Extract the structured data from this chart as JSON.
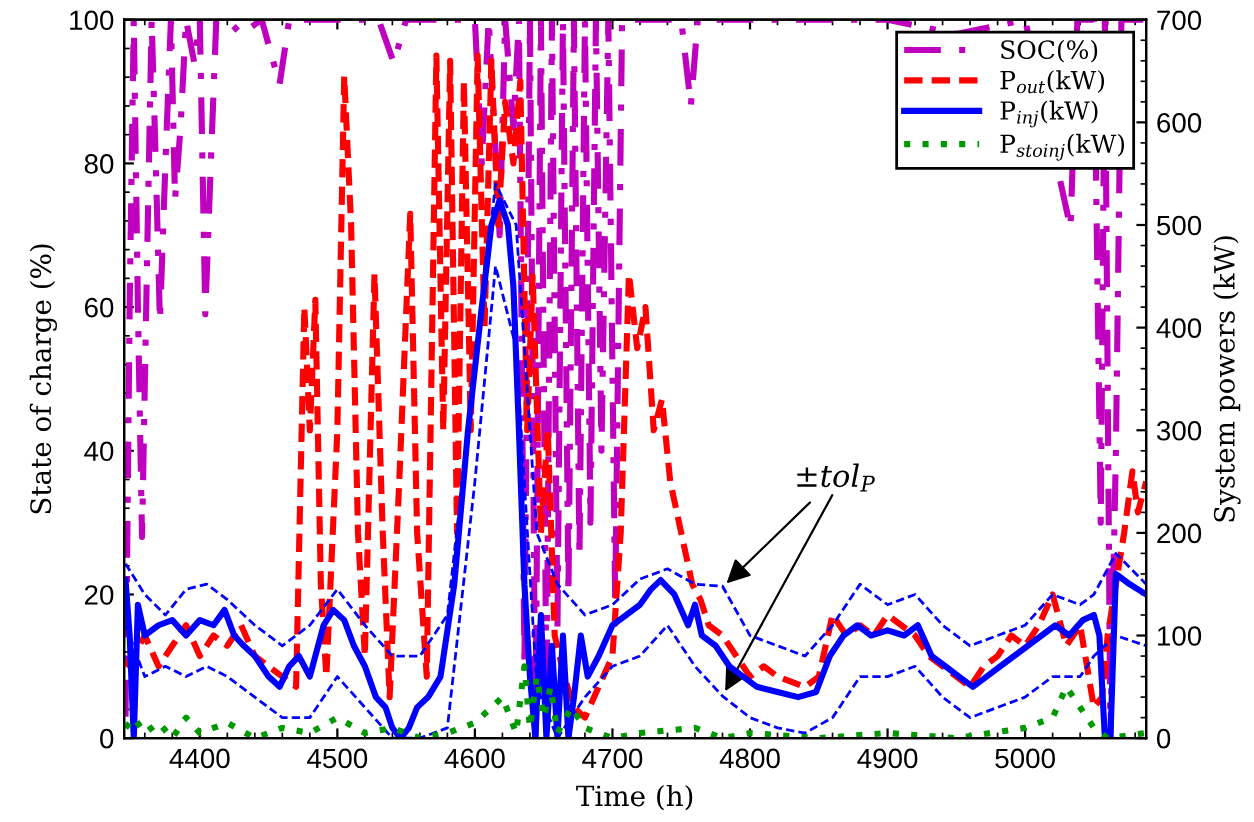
{
  "chart_data": {
    "type": "line",
    "xlabel": "Time (h)",
    "ylabel": "State of charge (%)",
    "y2label": "System powers (kW)",
    "xlim": [
      4345,
      5088
    ],
    "xticks": [
      4400,
      4500,
      4600,
      4700,
      4800,
      4900,
      5000
    ],
    "ylim": [
      0,
      100
    ],
    "yticks": [
      0,
      20,
      40,
      60,
      80,
      100
    ],
    "y2lim": [
      0,
      700
    ],
    "y2ticks": [
      0,
      100,
      200,
      300,
      400,
      500,
      600,
      700
    ],
    "grid": false,
    "legend": "top right",
    "marker": "none",
    "annotations": [
      {
        "text": "±tol$_{P}$",
        "x": 4780,
        "y": 21
      }
    ],
    "series": [
      {
        "name": "SOC(%)",
        "color": "#bf00bf",
        "line_style": "dashdot",
        "axis": "y",
        "x": [
          4346,
          4349,
          4352,
          4355,
          4358,
          4362,
          4365,
          4368,
          4371,
          4375,
          4379,
          4382,
          4386,
          4390,
          4396,
          4400,
          4404,
          4408,
          4412,
          4420,
          4430,
          4445,
          4458,
          4465,
          4530,
          4541,
          4550,
          4600,
          4605,
          4610,
          4618,
          4622,
          4628,
          4632,
          4636,
          4640,
          4644,
          4648,
          4652,
          4656,
          4660,
          4664,
          4668,
          4672,
          4676,
          4680,
          4684,
          4688,
          4692,
          4697,
          4702,
          4707,
          4750,
          4757,
          4762,
          4900,
          4950,
          5000,
          5033,
          5038,
          5050,
          5055,
          5058,
          5062,
          5066,
          5070,
          5088
        ],
        "values": [
          3,
          60,
          100,
          60,
          28,
          70,
          100,
          80,
          58,
          80,
          100,
          75,
          85,
          100,
          94,
          100,
          59,
          80,
          100,
          100,
          98,
          100,
          91,
          100,
          100,
          94,
          100,
          100,
          80,
          100,
          70,
          100,
          85,
          100,
          10,
          100,
          0,
          100,
          5,
          100,
          15,
          100,
          20,
          100,
          25,
          100,
          30,
          100,
          40,
          100,
          19,
          100,
          100,
          88,
          100,
          100,
          98,
          100,
          71,
          100,
          100,
          30,
          100,
          0,
          40,
          100,
          100
        ]
      },
      {
        "name": "P$_{out}$(kW)",
        "color": "#ff0000",
        "line_style": "dashed",
        "axis": "y2",
        "x": [
          4346,
          4352,
          4360,
          4370,
          4380,
          4390,
          4400,
          4410,
          4420,
          4430,
          4440,
          4450,
          4460,
          4470,
          4476,
          4480,
          4484,
          4488,
          4492,
          4500,
          4505,
          4510,
          4515,
          4520,
          4527,
          4533,
          4538,
          4545,
          4553,
          4558,
          4565,
          4572,
          4577,
          4582,
          4587,
          4592,
          4597,
          4602,
          4607,
          4612,
          4617,
          4622,
          4628,
          4633,
          4638,
          4642,
          4648,
          4653,
          4658,
          4665,
          4672,
          4680,
          4690,
          4700,
          4706,
          4712,
          4718,
          4724,
          4730,
          4736,
          4742,
          4750,
          4758,
          4764,
          4770,
          4780,
          4790,
          4800,
          4810,
          4820,
          4840,
          4850,
          4860,
          4870,
          4880,
          4890,
          4900,
          4910,
          4920,
          4930,
          4940,
          4950,
          4960,
          4970,
          4980,
          4990,
          5000,
          5010,
          5020,
          5030,
          5040,
          5050,
          5056,
          5060,
          5066,
          5072,
          5078,
          5082,
          5088
        ],
        "values": [
          70,
          80,
          100,
          70,
          90,
          110,
          80,
          100,
          90,
          110,
          80,
          70,
          60,
          50,
          420,
          300,
          427,
          150,
          60,
          300,
          645,
          500,
          200,
          80,
          452,
          200,
          40,
          250,
          511,
          200,
          60,
          665,
          300,
          660,
          200,
          640,
          300,
          665,
          400,
          660,
          500,
          620,
          560,
          640,
          300,
          450,
          200,
          300,
          100,
          60,
          30,
          20,
          50,
          80,
          200,
          452,
          380,
          420,
          300,
          330,
          250,
          200,
          150,
          135,
          110,
          100,
          80,
          60,
          70,
          60,
          50,
          60,
          120,
          100,
          110,
          100,
          120,
          110,
          100,
          80,
          70,
          60,
          50,
          70,
          80,
          100,
          90,
          110,
          140,
          90,
          110,
          30,
          40,
          100,
          150,
          200,
          260,
          220,
          250
        ]
      },
      {
        "name": "P$_{inj}$(kW)",
        "color": "#0000ff",
        "line_style": "solid",
        "axis": "y2",
        "x": [
          4346,
          4349,
          4352,
          4355,
          4360,
          4370,
          4380,
          4390,
          4400,
          4410,
          4418,
          4425,
          4432,
          4440,
          4450,
          4458,
          4465,
          4472,
          4480,
          4490,
          4497,
          4505,
          4512,
          4520,
          4528,
          4535,
          4540,
          4546,
          4552,
          4558,
          4566,
          4575,
          4585,
          4595,
          4605,
          4612,
          4618,
          4624,
          4628,
          4632,
          4636,
          4640,
          4644,
          4648,
          4652,
          4656,
          4660,
          4664,
          4668,
          4672,
          4677,
          4682,
          4690,
          4700,
          4710,
          4720,
          4728,
          4735,
          4745,
          4755,
          4760,
          4765,
          4775,
          4785,
          4795,
          4805,
          4820,
          4835,
          4848,
          4858,
          4868,
          4878,
          4888,
          4900,
          4912,
          4922,
          4932,
          4942,
          4952,
          4962,
          4972,
          4982,
          4992,
          5002,
          5012,
          5022,
          5032,
          5042,
          5050,
          5054,
          5058,
          5062,
          5066,
          5076,
          5088
        ],
        "values": [
          154,
          100,
          0,
          130,
          100,
          110,
          115,
          100,
          115,
          110,
          125,
          100,
          90,
          80,
          60,
          50,
          70,
          80,
          60,
          110,
          125,
          115,
          90,
          70,
          40,
          30,
          10,
          0,
          10,
          30,
          40,
          60,
          150,
          300,
          420,
          500,
          524,
          500,
          440,
          300,
          150,
          60,
          0,
          120,
          0,
          90,
          0,
          100,
          0,
          40,
          100,
          60,
          80,
          110,
          120,
          130,
          145,
          154,
          140,
          110,
          130,
          100,
          90,
          70,
          60,
          50,
          45,
          40,
          45,
          80,
          100,
          110,
          100,
          105,
          100,
          110,
          80,
          70,
          60,
          50,
          60,
          70,
          80,
          90,
          100,
          110,
          100,
          115,
          120,
          100,
          0,
          0,
          160,
          150,
          140
        ]
      },
      {
        "color": "#0000ff",
        "line_style": "dashed",
        "axis": "y2",
        "x": [
          4346,
          4360,
          4375,
          4390,
          4405,
          4420,
          4440,
          4460,
          4480,
          4500,
          4520,
          4540,
          4560,
          4580,
          4600,
          4615,
          4630,
          4645,
          4660,
          4680,
          4700,
          4720,
          4740,
          4760,
          4780,
          4800,
          4820,
          4840,
          4860,
          4880,
          4900,
          4920,
          4940,
          4960,
          4980,
          5000,
          5020,
          5040,
          5050,
          5066,
          5088
        ],
        "values": [
          170,
          140,
          120,
          145,
          150,
          135,
          110,
          90,
          110,
          145,
          110,
          80,
          80,
          120,
          360,
          540,
          500,
          200,
          150,
          120,
          130,
          155,
          165,
          150,
          148,
          100,
          90,
          80,
          110,
          150,
          130,
          140,
          110,
          90,
          100,
          110,
          140,
          130,
          140,
          180,
          150
        ]
      },
      {
        "color": "#0000ff",
        "line_style": "dashed",
        "axis": "y2",
        "x": [
          4346,
          4360,
          4375,
          4390,
          4405,
          4420,
          4440,
          4460,
          4480,
          4500,
          4520,
          4540,
          4560,
          4580,
          4600,
          4615,
          4630,
          4645,
          4660,
          4680,
          4700,
          4720,
          4740,
          4760,
          4780,
          4800,
          4820,
          4840,
          4860,
          4880,
          4900,
          4920,
          4940,
          4960,
          4980,
          5000,
          5020,
          5040,
          5050,
          5066,
          5088
        ],
        "values": [
          110,
          60,
          70,
          60,
          70,
          60,
          40,
          20,
          20,
          60,
          30,
          0,
          0,
          10,
          250,
          460,
          380,
          50,
          0,
          40,
          70,
          80,
          110,
          70,
          41,
          20,
          10,
          5,
          20,
          60,
          60,
          70,
          40,
          20,
          30,
          40,
          60,
          60,
          80,
          100,
          90
        ]
      },
      {
        "name": "P$_{stoinj}$(kW)",
        "color": "#009900",
        "line_style": "dotted",
        "axis": "y2",
        "x": [
          4346,
          4352,
          4360,
          4370,
          4380,
          4390,
          4400,
          4420,
          4440,
          4460,
          4480,
          4500,
          4520,
          4540,
          4560,
          4580,
          4600,
          4620,
          4630,
          4636,
          4640,
          4645,
          4650,
          4655,
          4660,
          4670,
          4680,
          4690,
          4700,
          4720,
          4760,
          4780,
          4800,
          4850,
          4900,
          4950,
          5000,
          5020,
          5030,
          5040,
          5050,
          5060,
          5088
        ],
        "values": [
          10,
          20,
          5,
          15,
          0,
          20,
          5,
          15,
          0,
          10,
          5,
          20,
          5,
          10,
          0,
          5,
          15,
          40,
          5,
          70,
          10,
          60,
          20,
          50,
          5,
          30,
          10,
          5,
          0,
          5,
          10,
          0,
          5,
          0,
          5,
          0,
          10,
          20,
          50,
          30,
          10,
          0,
          5
        ]
      }
    ]
  }
}
